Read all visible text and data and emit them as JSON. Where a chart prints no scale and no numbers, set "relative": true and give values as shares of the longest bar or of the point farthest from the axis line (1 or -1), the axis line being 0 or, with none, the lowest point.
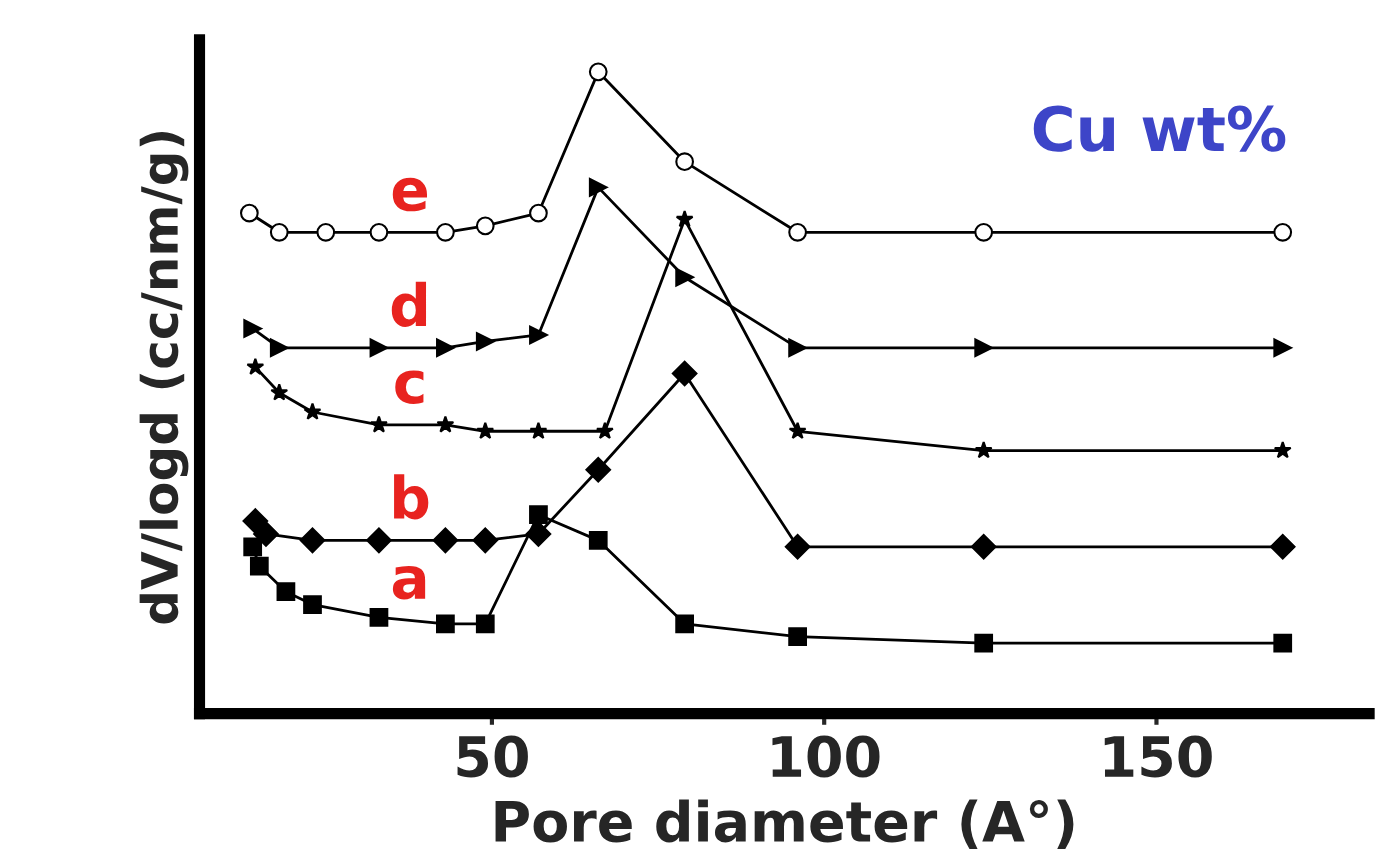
{
  "chart_data": {
    "type": "line",
    "relative": true,
    "xlabel": "Pore diameter (A°)",
    "ylabel": "dV/logd (cc/nm/g)",
    "annotations": [
      "Cu wt%"
    ],
    "xlim": [
      6,
      182
    ],
    "xticks": [
      50,
      100,
      150
    ],
    "grid": false,
    "legend": false,
    "line_style": "solid",
    "series": [
      {
        "name": "e",
        "color": "#000000",
        "marker": "circle",
        "x": [
          13.5,
          18,
          25,
          33,
          43,
          49,
          57,
          66,
          79,
          96,
          124,
          169
        ],
        "values": [
          0.78,
          0.75,
          0.75,
          0.75,
          0.75,
          0.76,
          0.78,
          1.0,
          0.86,
          0.75,
          0.75,
          0.75
        ]
      },
      {
        "name": "d",
        "color": "#000000",
        "marker": "triangle",
        "x": [
          14,
          18,
          33,
          43,
          49,
          57,
          66,
          79,
          96,
          124,
          169
        ],
        "values": [
          0.6,
          0.57,
          0.57,
          0.57,
          0.58,
          0.59,
          0.82,
          0.68,
          0.57,
          0.57,
          0.57
        ]
      },
      {
        "name": "c",
        "color": "#000000",
        "marker": "star",
        "x": [
          14.4,
          18,
          23,
          33,
          43,
          49,
          57,
          67,
          79,
          96,
          124,
          169
        ],
        "values": [
          0.54,
          0.5,
          0.47,
          0.45,
          0.45,
          0.44,
          0.44,
          0.44,
          0.77,
          0.44,
          0.41,
          0.41
        ]
      },
      {
        "name": "b",
        "color": "#000000",
        "marker": "diamond",
        "x": [
          14.4,
          16,
          23,
          33,
          43,
          49,
          57,
          66,
          79,
          96,
          124,
          169
        ],
        "values": [
          0.3,
          0.28,
          0.27,
          0.27,
          0.27,
          0.27,
          0.28,
          0.38,
          0.53,
          0.26,
          0.26,
          0.26
        ]
      },
      {
        "name": "a",
        "color": "#000000",
        "marker": "square",
        "x": [
          14,
          15,
          19,
          23,
          33,
          43,
          49,
          57,
          66,
          79,
          96,
          124,
          169
        ],
        "values": [
          0.26,
          0.23,
          0.19,
          0.17,
          0.15,
          0.14,
          0.14,
          0.31,
          0.27,
          0.14,
          0.12,
          0.11,
          0.11
        ]
      }
    ]
  }
}
